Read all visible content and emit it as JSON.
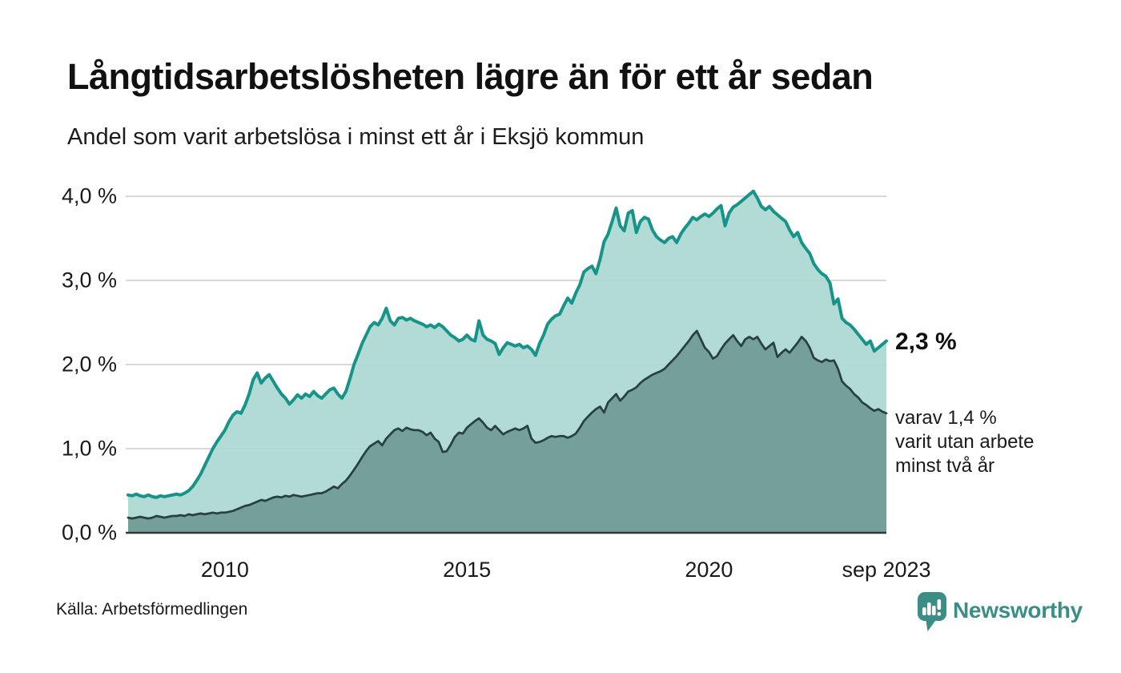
{
  "title": "Långtidsarbetslösheten lägre än för ett år sedan",
  "subtitle": "Andel som varit arbetslösa i minst ett år i Eksjö kommun",
  "source": "Källa: Arbetsförmedlingen",
  "branding": {
    "name": "Newsworthy",
    "color": "#3a8e85"
  },
  "annotations": {
    "latest_value": "2,3 %",
    "secondary": [
      "varav 1,4 %",
      "varit utan arbete",
      "minst två år"
    ]
  },
  "colors": {
    "background": "#ffffff",
    "gridline": "#d9d9d9",
    "axis_line": "#2e3c39",
    "text": "#1a1a1a"
  },
  "chart_data": {
    "type": "area",
    "title": "Långtidsarbetslösheten lägre än för ett år sedan",
    "subtitle": "Andel som varit arbetslösa i minst ett år i Eksjö kommun",
    "x_start": "2008-01",
    "x_end": "2023-09",
    "frequency": "monthly",
    "ylim": [
      0,
      4.3
    ],
    "grid": true,
    "legend": "none",
    "y_ticks": [
      {
        "label": "0,0 %",
        "value": 0
      },
      {
        "label": "1,0 %",
        "value": 1
      },
      {
        "label": "2,0 %",
        "value": 2
      },
      {
        "label": "3,0 %",
        "value": 3
      },
      {
        "label": "4,0 %",
        "value": 4
      }
    ],
    "x_ticks": [
      {
        "label": "2010",
        "index": 24
      },
      {
        "label": "2015",
        "index": 84
      },
      {
        "label": "2020",
        "index": 144
      },
      {
        "label": "sep 2023",
        "index": 188
      }
    ],
    "series": [
      {
        "name": "arbetslösa minst ett år",
        "line_color": "#17948a",
        "fill_color": "#abd7d1",
        "line_width": 4,
        "end_label": "2,3 %",
        "values": [
          0.45,
          0.44,
          0.46,
          0.44,
          0.43,
          0.45,
          0.43,
          0.42,
          0.44,
          0.43,
          0.44,
          0.45,
          0.46,
          0.45,
          0.47,
          0.5,
          0.55,
          0.62,
          0.7,
          0.8,
          0.9,
          1.0,
          1.08,
          1.15,
          1.22,
          1.32,
          1.4,
          1.44,
          1.42,
          1.52,
          1.65,
          1.82,
          1.9,
          1.78,
          1.84,
          1.88,
          1.8,
          1.72,
          1.65,
          1.6,
          1.53,
          1.58,
          1.64,
          1.6,
          1.65,
          1.62,
          1.68,
          1.63,
          1.6,
          1.65,
          1.7,
          1.72,
          1.65,
          1.6,
          1.68,
          1.83,
          2.0,
          2.12,
          2.25,
          2.35,
          2.45,
          2.5,
          2.47,
          2.55,
          2.67,
          2.52,
          2.47,
          2.55,
          2.56,
          2.53,
          2.55,
          2.52,
          2.5,
          2.48,
          2.45,
          2.47,
          2.44,
          2.48,
          2.45,
          2.4,
          2.35,
          2.32,
          2.28,
          2.3,
          2.35,
          2.3,
          2.28,
          2.52,
          2.35,
          2.3,
          2.28,
          2.25,
          2.12,
          2.2,
          2.26,
          2.24,
          2.22,
          2.24,
          2.2,
          2.22,
          2.18,
          2.11,
          2.25,
          2.35,
          2.48,
          2.54,
          2.58,
          2.6,
          2.7,
          2.79,
          2.73,
          2.85,
          2.95,
          3.1,
          3.14,
          3.17,
          3.08,
          3.25,
          3.46,
          3.55,
          3.7,
          3.86,
          3.65,
          3.59,
          3.8,
          3.83,
          3.57,
          3.7,
          3.75,
          3.73,
          3.6,
          3.52,
          3.48,
          3.45,
          3.5,
          3.52,
          3.45,
          3.55,
          3.62,
          3.68,
          3.75,
          3.72,
          3.76,
          3.79,
          3.76,
          3.8,
          3.85,
          3.89,
          3.65,
          3.8,
          3.87,
          3.9,
          3.94,
          3.98,
          4.02,
          4.06,
          3.98,
          3.88,
          3.84,
          3.88,
          3.82,
          3.78,
          3.74,
          3.7,
          3.6,
          3.52,
          3.57,
          3.45,
          3.38,
          3.32,
          3.2,
          3.13,
          3.08,
          3.05,
          2.97,
          2.72,
          2.78,
          2.55,
          2.5,
          2.47,
          2.42,
          2.36,
          2.3,
          2.24,
          2.28,
          2.16,
          2.2,
          2.24,
          2.28
        ]
      },
      {
        "name": "varit utan arbete minst två år",
        "line_color": "#27423e",
        "fill_color": "#6f9b94",
        "line_width": 2.75,
        "end_label": "varav 1,4 %",
        "values": [
          0.18,
          0.17,
          0.18,
          0.19,
          0.18,
          0.17,
          0.18,
          0.2,
          0.19,
          0.18,
          0.19,
          0.2,
          0.2,
          0.21,
          0.2,
          0.22,
          0.21,
          0.22,
          0.23,
          0.22,
          0.23,
          0.24,
          0.23,
          0.24,
          0.24,
          0.25,
          0.26,
          0.28,
          0.3,
          0.32,
          0.33,
          0.35,
          0.37,
          0.39,
          0.38,
          0.4,
          0.42,
          0.43,
          0.42,
          0.44,
          0.43,
          0.45,
          0.44,
          0.43,
          0.44,
          0.45,
          0.46,
          0.47,
          0.47,
          0.49,
          0.52,
          0.55,
          0.53,
          0.58,
          0.62,
          0.68,
          0.75,
          0.82,
          0.9,
          0.97,
          1.03,
          1.06,
          1.09,
          1.04,
          1.12,
          1.17,
          1.22,
          1.24,
          1.21,
          1.25,
          1.23,
          1.22,
          1.22,
          1.2,
          1.16,
          1.19,
          1.12,
          1.08,
          0.96,
          0.97,
          1.05,
          1.14,
          1.19,
          1.18,
          1.25,
          1.29,
          1.33,
          1.36,
          1.31,
          1.25,
          1.22,
          1.27,
          1.22,
          1.17,
          1.2,
          1.22,
          1.24,
          1.22,
          1.24,
          1.27,
          1.12,
          1.07,
          1.08,
          1.1,
          1.13,
          1.15,
          1.14,
          1.15,
          1.15,
          1.13,
          1.15,
          1.18,
          1.25,
          1.33,
          1.38,
          1.43,
          1.47,
          1.5,
          1.43,
          1.55,
          1.6,
          1.65,
          1.57,
          1.62,
          1.68,
          1.7,
          1.73,
          1.78,
          1.82,
          1.85,
          1.88,
          1.9,
          1.92,
          1.95,
          2.0,
          2.05,
          2.1,
          2.16,
          2.22,
          2.28,
          2.35,
          2.4,
          2.3,
          2.2,
          2.15,
          2.07,
          2.1,
          2.18,
          2.25,
          2.3,
          2.35,
          2.28,
          2.22,
          2.3,
          2.33,
          2.3,
          2.33,
          2.25,
          2.18,
          2.22,
          2.26,
          2.09,
          2.14,
          2.18,
          2.14,
          2.2,
          2.26,
          2.33,
          2.28,
          2.2,
          2.08,
          2.05,
          2.03,
          2.06,
          2.04,
          2.05,
          1.95,
          1.8,
          1.75,
          1.71,
          1.65,
          1.61,
          1.55,
          1.52,
          1.48,
          1.45,
          1.47,
          1.44,
          1.42
        ]
      }
    ]
  }
}
